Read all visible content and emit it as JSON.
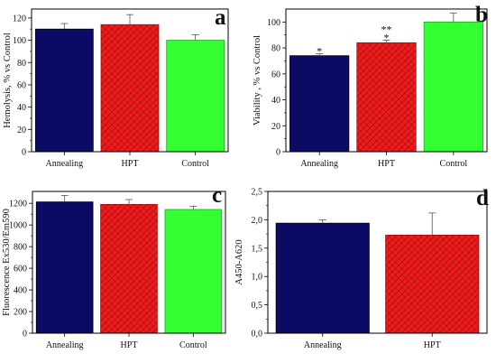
{
  "colors": {
    "annealing": "#0b0b66",
    "hpt": "#ee1c1c",
    "hpt_hatch": "#9a0d0d",
    "control": "#33ff33",
    "control_edge": "#22aa22",
    "axis": "#000000"
  },
  "chart_data": [
    {
      "panel": "a",
      "type": "bar",
      "categories": [
        "Annealing",
        "HPT",
        "Control"
      ],
      "values": [
        110,
        114,
        100
      ],
      "errors": [
        5,
        9,
        5
      ],
      "ylabel": "Hemolysis, % vs Control",
      "ylim": [
        0,
        128
      ],
      "yticks": [
        0,
        20,
        40,
        60,
        80,
        100,
        120
      ],
      "ytick_labels": [
        "0",
        "20",
        "40",
        "60",
        "80",
        "100",
        "120"
      ],
      "annotations": []
    },
    {
      "panel": "b",
      "type": "bar",
      "categories": [
        "Annealing",
        "HPT",
        "Control"
      ],
      "values": [
        74,
        84,
        100
      ],
      "errors": [
        1.5,
        2,
        7
      ],
      "ylabel": "Viability , % vs Control",
      "ylim": [
        0,
        110
      ],
      "yticks": [
        0,
        20,
        40,
        60,
        80,
        100
      ],
      "ytick_labels": [
        "0",
        "20",
        "40",
        "60",
        "80",
        "100"
      ],
      "annotations": [
        {
          "category": "Annealing",
          "text": "*"
        },
        {
          "category": "HPT",
          "text": "**"
        },
        {
          "category": "HPT",
          "text": "*"
        }
      ]
    },
    {
      "panel": "c",
      "type": "bar",
      "categories": [
        "Annealing",
        "HPT",
        "Control"
      ],
      "values": [
        1213,
        1190,
        1143
      ],
      "errors": [
        60,
        45,
        30
      ],
      "ylabel": "Fluorescence Ex530/Em590",
      "ylim": [
        0,
        1310
      ],
      "yticks": [
        0,
        200,
        400,
        600,
        800,
        1000,
        1200
      ],
      "ytick_labels": [
        "0",
        "200",
        "400",
        "600",
        "800",
        "1000",
        "1200"
      ],
      "annotations": []
    },
    {
      "panel": "d",
      "type": "bar",
      "categories": [
        "Annealing",
        "HPT"
      ],
      "values": [
        1.94,
        1.73
      ],
      "errors": [
        0.06,
        0.39
      ],
      "ylabel": "A450-A620",
      "ylim": [
        0,
        2.5
      ],
      "yticks": [
        0.0,
        0.5,
        1.0,
        1.5,
        2.0,
        2.5
      ],
      "ytick_labels": [
        "0,0",
        "0,5",
        "1,0",
        "1,5",
        "2,0",
        "2,5"
      ],
      "annotations": []
    }
  ]
}
